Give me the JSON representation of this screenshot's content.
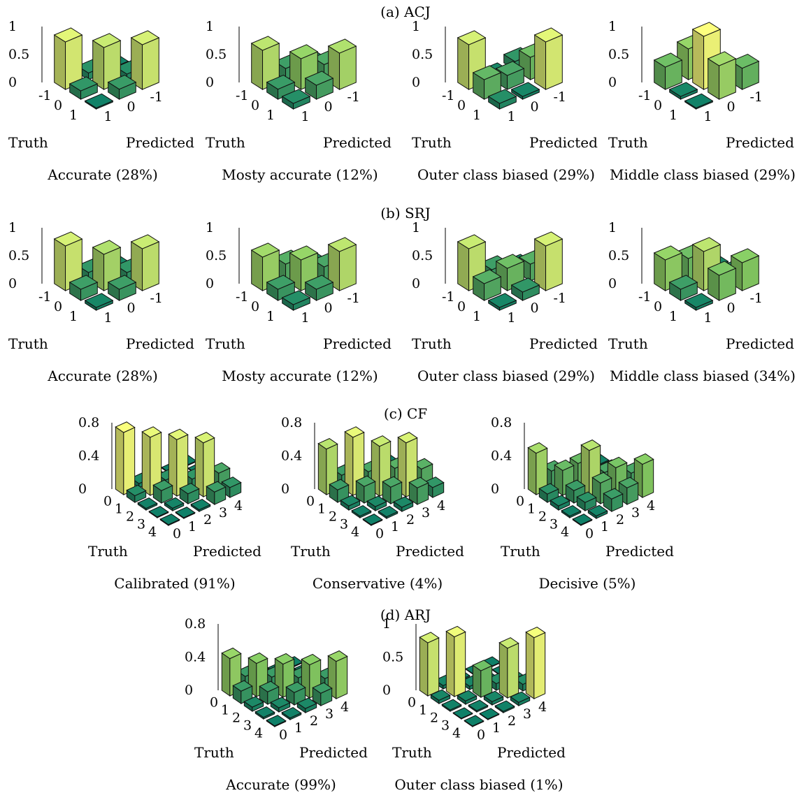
{
  "sections": [
    {
      "title": "(a) ACJ",
      "panels": [
        {
          "caption": "Accurate (28%)",
          "zticks": [
            "1",
            "0.5",
            "0"
          ],
          "zmax": 1,
          "rows": [
            "-1",
            "0",
            "1"
          ],
          "cols": [
            "1",
            "0",
            "-1"
          ],
          "truth_label": "Truth",
          "predicted_label": "Predicted"
        },
        {
          "caption": "Mosty accurate (12%)",
          "zticks": [
            "1",
            "0.5",
            "0"
          ],
          "zmax": 1,
          "rows": [
            "-1",
            "0",
            "1"
          ],
          "cols": [
            "1",
            "0",
            "-1"
          ],
          "truth_label": "Truth",
          "predicted_label": "Predicted"
        },
        {
          "caption": "Outer class biased (29%)",
          "zticks": [
            "1",
            "0.5",
            "0"
          ],
          "zmax": 1,
          "rows": [
            "-1",
            "0",
            "1"
          ],
          "cols": [
            "1",
            "0",
            "-1"
          ],
          "truth_label": "Truth",
          "predicted_label": "Predicted"
        },
        {
          "caption": "Middle class biased (29%)",
          "zticks": [
            "1",
            "0.5",
            "0"
          ],
          "zmax": 1,
          "rows": [
            "-1",
            "0",
            "1"
          ],
          "cols": [
            "1",
            "0",
            "-1"
          ],
          "truth_label": "Truth",
          "predicted_label": "Predicted"
        }
      ]
    },
    {
      "title": "(b) SRJ",
      "panels": [
        {
          "caption": "Accurate (28%)",
          "zticks": [
            "1",
            "0.5",
            "0"
          ],
          "zmax": 1,
          "rows": [
            "-1",
            "0",
            "1"
          ],
          "cols": [
            "1",
            "0",
            "-1"
          ],
          "truth_label": "Truth",
          "predicted_label": "Predicted"
        },
        {
          "caption": "Mosty accurate (12%)",
          "zticks": [
            "1",
            "0.5",
            "0"
          ],
          "zmax": 1,
          "rows": [
            "-1",
            "0",
            "1"
          ],
          "cols": [
            "1",
            "0",
            "-1"
          ],
          "truth_label": "Truth",
          "predicted_label": "Predicted"
        },
        {
          "caption": "Outer class biased (29%)",
          "zticks": [
            "1",
            "0.5",
            "0"
          ],
          "zmax": 1,
          "rows": [
            "-1",
            "0",
            "1"
          ],
          "cols": [
            "1",
            "0",
            "-1"
          ],
          "truth_label": "Truth",
          "predicted_label": "Predicted"
        },
        {
          "caption": "Middle class biased (34%)",
          "zticks": [
            "1",
            "0.5",
            "0"
          ],
          "zmax": 1,
          "rows": [
            "-1",
            "0",
            "1"
          ],
          "cols": [
            "1",
            "0",
            "-1"
          ],
          "truth_label": "Truth",
          "predicted_label": "Predicted"
        }
      ]
    },
    {
      "title": "(c) CF",
      "panels": [
        {
          "caption": "Calibrated (91%)",
          "zticks": [
            "0.8",
            "0.4",
            "0"
          ],
          "zmax": 0.8,
          "rows": [
            "4",
            "3",
            "2",
            "1",
            "0"
          ],
          "cols": [
            "0",
            "1",
            "2",
            "3",
            "4"
          ],
          "truth_label": "Truth",
          "predicted_label": "Predicted"
        },
        {
          "caption": "Conservative (4%)",
          "zticks": [
            "0.8",
            "0.4",
            "0"
          ],
          "zmax": 0.8,
          "rows": [
            "4",
            "3",
            "2",
            "1",
            "0"
          ],
          "cols": [
            "0",
            "1",
            "2",
            "3",
            "4"
          ],
          "truth_label": "Truth",
          "predicted_label": "Predicted"
        },
        {
          "caption": "Decisive (5%)",
          "zticks": [
            "0.8",
            "0.4",
            "0"
          ],
          "zmax": 0.8,
          "rows": [
            "4",
            "3",
            "2",
            "1",
            "0"
          ],
          "cols": [
            "0",
            "1",
            "2",
            "3",
            "4"
          ],
          "truth_label": "Truth",
          "predicted_label": "Predicted"
        }
      ]
    },
    {
      "title": "(d) ARJ",
      "panels": [
        {
          "caption": "Accurate (99%)",
          "zticks": [
            "0.8",
            "0.4",
            "0"
          ],
          "zmax": 0.8,
          "rows": [
            "4",
            "3",
            "2",
            "1",
            "0"
          ],
          "cols": [
            "0",
            "1",
            "2",
            "3",
            "4"
          ],
          "truth_label": "Truth",
          "predicted_label": "Predicted"
        },
        {
          "caption": "Outer class biased (1%)",
          "zticks": [
            "1",
            "0.5",
            "0"
          ],
          "zmax": 1,
          "rows": [
            "4",
            "3",
            "2",
            "1",
            "0"
          ],
          "cols": [
            "0",
            "1",
            "2",
            "3",
            "4"
          ],
          "truth_label": "Truth",
          "predicted_label": "Predicted"
        }
      ]
    }
  ],
  "chart_data": [
    {
      "type": "bar3d",
      "title": "Accurate (28%)",
      "xlabel": "Truth",
      "ylabel": "Predicted",
      "zlim": [
        0,
        1
      ],
      "truth": [
        "-1",
        "0",
        "1"
      ],
      "predicted": [
        "-1",
        "0",
        "1"
      ],
      "values": [
        [
          0.85,
          0.12,
          0.03
        ],
        [
          0.15,
          0.75,
          0.1
        ],
        [
          0.02,
          0.18,
          0.8
        ]
      ]
    },
    {
      "type": "bar3d",
      "title": "Mosty accurate (12%)",
      "xlabel": "Truth",
      "ylabel": "Predicted",
      "zlim": [
        0,
        1
      ],
      "truth": [
        "-1",
        "0",
        "1"
      ],
      "predicted": [
        "-1",
        "0",
        "1"
      ],
      "values": [
        [
          0.7,
          0.2,
          0.1
        ],
        [
          0.18,
          0.55,
          0.27
        ],
        [
          0.1,
          0.25,
          0.65
        ]
      ]
    },
    {
      "type": "bar3d",
      "title": "Outer class biased (29%)",
      "xlabel": "Truth",
      "ylabel": "Predicted",
      "zlim": [
        0,
        1
      ],
      "truth": [
        "-1",
        "0",
        "1"
      ],
      "predicted": [
        "-1",
        "0",
        "1"
      ],
      "values": [
        [
          0.8,
          0.05,
          0.15
        ],
        [
          0.35,
          0.25,
          0.4
        ],
        [
          0.1,
          0.05,
          0.85
        ]
      ]
    },
    {
      "type": "bar3d",
      "title": "Middle class biased (29%)",
      "xlabel": "Truth",
      "ylabel": "Predicted",
      "zlim": [
        0,
        1
      ],
      "truth": [
        "-1",
        "0",
        "1"
      ],
      "predicted": [
        "-1",
        "0",
        "1"
      ],
      "values": [
        [
          0.4,
          0.55,
          0.05
        ],
        [
          0.05,
          0.95,
          0.0
        ],
        [
          0.02,
          0.6,
          0.38
        ]
      ]
    },
    {
      "type": "bar3d",
      "title": "Accurate (28%)",
      "xlabel": "Truth",
      "ylabel": "Predicted",
      "zlim": [
        0,
        1
      ],
      "truth": [
        "-1",
        "0",
        "1"
      ],
      "predicted": [
        "-1",
        "0",
        "1"
      ],
      "values": [
        [
          0.8,
          0.15,
          0.05
        ],
        [
          0.2,
          0.65,
          0.15
        ],
        [
          0.05,
          0.2,
          0.75
        ]
      ]
    },
    {
      "type": "bar3d",
      "title": "Mosty accurate (12%)",
      "xlabel": "Truth",
      "ylabel": "Predicted",
      "zlim": [
        0,
        1
      ],
      "truth": [
        "-1",
        "0",
        "1"
      ],
      "predicted": [
        "-1",
        "0",
        "1"
      ],
      "values": [
        [
          0.6,
          0.3,
          0.1
        ],
        [
          0.2,
          0.55,
          0.25
        ],
        [
          0.1,
          0.2,
          0.7
        ]
      ]
    },
    {
      "type": "bar3d",
      "title": "Outer class biased (29%)",
      "xlabel": "Truth",
      "ylabel": "Predicted",
      "zlim": [
        0,
        1
      ],
      "truth": [
        "-1",
        "0",
        "1"
      ],
      "predicted": [
        "-1",
        "0",
        "1"
      ],
      "values": [
        [
          0.75,
          0.2,
          0.05
        ],
        [
          0.3,
          0.4,
          0.3
        ],
        [
          0.05,
          0.15,
          0.8
        ]
      ]
    },
    {
      "type": "bar3d",
      "title": "Middle class biased (34%)",
      "xlabel": "Truth",
      "ylabel": "Predicted",
      "zlim": [
        0,
        1
      ],
      "truth": [
        "-1",
        "0",
        "1"
      ],
      "predicted": [
        "-1",
        "0",
        "1"
      ],
      "values": [
        [
          0.55,
          0.4,
          0.05
        ],
        [
          0.2,
          0.7,
          0.1
        ],
        [
          0.05,
          0.45,
          0.5
        ]
      ]
    },
    {
      "type": "bar3d",
      "title": "Calibrated (91%)",
      "xlabel": "Truth",
      "ylabel": "Predicted",
      "zlim": [
        0,
        0.8
      ],
      "truth": [
        "0",
        "1",
        "2",
        "3",
        "4"
      ],
      "predicted": [
        "0",
        "1",
        "2",
        "3",
        "4"
      ],
      "values": [
        [
          0.75,
          0.05,
          0.02,
          0.01,
          0.01
        ],
        [
          0.08,
          0.7,
          0.1,
          0.02,
          0.01
        ],
        [
          0.02,
          0.15,
          0.68,
          0.12,
          0.02
        ],
        [
          0.01,
          0.03,
          0.12,
          0.65,
          0.2
        ],
        [
          0.01,
          0.01,
          0.02,
          0.15,
          0.12
        ]
      ]
    },
    {
      "type": "bar3d",
      "title": "Conservative (4%)",
      "xlabel": "Truth",
      "ylabel": "Predicted",
      "zlim": [
        0,
        0.8
      ],
      "truth": [
        "0",
        "1",
        "2",
        "3",
        "4"
      ],
      "predicted": [
        "0",
        "1",
        "2",
        "3",
        "4"
      ],
      "values": [
        [
          0.55,
          0.15,
          0.05,
          0.02,
          0.01
        ],
        [
          0.15,
          0.7,
          0.2,
          0.05,
          0.02
        ],
        [
          0.05,
          0.2,
          0.6,
          0.25,
          0.05
        ],
        [
          0.02,
          0.05,
          0.2,
          0.65,
          0.25
        ],
        [
          0.01,
          0.02,
          0.05,
          0.2,
          0.12
        ]
      ]
    },
    {
      "type": "bar3d",
      "title": "Decisive (5%)",
      "xlabel": "Truth",
      "ylabel": "Predicted",
      "zlim": [
        0,
        0.8
      ],
      "truth": [
        "0",
        "1",
        "2",
        "3",
        "4"
      ],
      "predicted": [
        "0",
        "1",
        "2",
        "3",
        "4"
      ],
      "values": [
        [
          0.5,
          0.2,
          0.1,
          0.05,
          0.02
        ],
        [
          0.1,
          0.3,
          0.3,
          0.1,
          0.05
        ],
        [
          0.05,
          0.15,
          0.55,
          0.2,
          0.1
        ],
        [
          0.02,
          0.1,
          0.25,
          0.35,
          0.2
        ],
        [
          0.01,
          0.03,
          0.15,
          0.2,
          0.4
        ]
      ]
    },
    {
      "type": "bar3d",
      "title": "Accurate (99%)",
      "xlabel": "Truth",
      "ylabel": "Predicted",
      "zlim": [
        0,
        0.8
      ],
      "truth": [
        "0",
        "1",
        "2",
        "3",
        "4"
      ],
      "predicted": [
        "0",
        "1",
        "2",
        "3",
        "4"
      ],
      "values": [
        [
          0.45,
          0.15,
          0.05,
          0.02,
          0.01
        ],
        [
          0.15,
          0.4,
          0.15,
          0.05,
          0.02
        ],
        [
          0.05,
          0.15,
          0.4,
          0.15,
          0.05
        ],
        [
          0.02,
          0.05,
          0.15,
          0.4,
          0.15
        ],
        [
          0.01,
          0.02,
          0.05,
          0.15,
          0.45
        ]
      ]
    },
    {
      "type": "bar3d",
      "title": "Outer class biased (1%)",
      "xlabel": "Truth",
      "ylabel": "Predicted",
      "zlim": [
        0,
        1
      ],
      "truth": [
        "0",
        "1",
        "2",
        "3",
        "4"
      ],
      "predicted": [
        "0",
        "1",
        "2",
        "3",
        "4"
      ],
      "values": [
        [
          0.8,
          0.05,
          0.02,
          0.01,
          0.01
        ],
        [
          0.05,
          0.9,
          0.05,
          0.02,
          0.01
        ],
        [
          0.02,
          0.05,
          0.4,
          0.1,
          0.05
        ],
        [
          0.01,
          0.02,
          0.05,
          0.75,
          0.1
        ],
        [
          0.01,
          0.01,
          0.02,
          0.05,
          0.92
        ]
      ]
    }
  ],
  "colors": {
    "low": "#0b7560",
    "mid": "#7fc15e",
    "high": "#f6f477",
    "edge": "#111111"
  }
}
